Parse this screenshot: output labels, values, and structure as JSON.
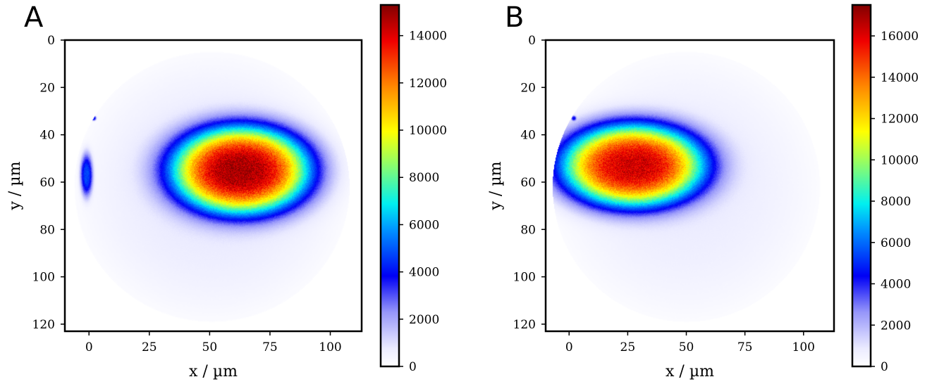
{
  "chart_data": [
    {
      "panel_label": "A",
      "type": "heatmap",
      "xlabel": "x / µm",
      "ylabel": "y / µm",
      "x_ticks": [
        0,
        25,
        50,
        75,
        100
      ],
      "y_ticks": [
        0,
        20,
        40,
        60,
        80,
        100,
        120
      ],
      "xlim": [
        -10,
        113
      ],
      "ylim": [
        123,
        0
      ],
      "colorbar_ticks": [
        0,
        2000,
        4000,
        6000,
        8000,
        10000,
        12000,
        14000
      ],
      "colorbar_range": [
        0,
        15300
      ],
      "colormap": "jet-with-white-low",
      "aperture": {
        "center_x": 51,
        "center_y": 62,
        "radius": 57
      },
      "hotspots": [
        {
          "center_x": 63,
          "center_y": 55,
          "sigma_x": 28,
          "sigma_y": 18,
          "peak": 14000
        },
        {
          "center_x": -1,
          "center_y": 57,
          "sigma_x": 2.5,
          "sigma_y": 9,
          "peak": 4500
        },
        {
          "center_x": 2,
          "center_y": 33,
          "sigma_x": 1,
          "sigma_y": 1,
          "peak": 4000
        }
      ]
    },
    {
      "panel_label": "B",
      "type": "heatmap",
      "xlabel": "x / µm",
      "ylabel": "y / µm",
      "x_ticks": [
        0,
        25,
        50,
        75,
        100
      ],
      "y_ticks": [
        0,
        20,
        40,
        60,
        80,
        100,
        120
      ],
      "xlim": [
        -10,
        113
      ],
      "ylim": [
        123,
        0
      ],
      "colorbar_ticks": [
        0,
        2000,
        4000,
        6000,
        8000,
        10000,
        12000,
        14000,
        16000
      ],
      "colorbar_range": [
        0,
        17500
      ],
      "colormap": "jet-with-white-low",
      "aperture": {
        "center_x": 50,
        "center_y": 62,
        "radius": 57
      },
      "hotspots": [
        {
          "center_x": 27,
          "center_y": 53,
          "sigma_x": 30,
          "sigma_y": 17,
          "peak": 15500
        },
        {
          "center_x": 2,
          "center_y": 33,
          "sigma_x": 1,
          "sigma_y": 1,
          "peak": 3500
        }
      ]
    }
  ]
}
